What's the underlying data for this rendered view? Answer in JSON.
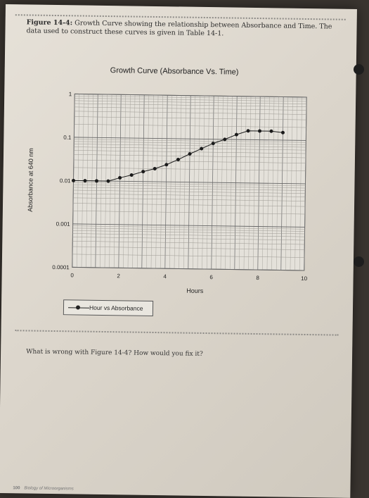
{
  "caption": {
    "label": "Figure 14-4:",
    "text": "Growth Curve showing the relationship between Absorbance and Time. The data used to construct these curves is given in Table 14-1."
  },
  "question": "What is wrong with Figure 14-4? How would you fix it?",
  "footer": {
    "page_number": "100",
    "book_title": "Biology of Microorganisms"
  },
  "chart_data": {
    "type": "line",
    "title": "Growth Curve (Absorbance Vs. Time)",
    "xlabel": "Hours",
    "ylabel": "Absorbance at 640 nm",
    "xlim": [
      0,
      10
    ],
    "ylim": [
      0.0001,
      1
    ],
    "y_scale": "log",
    "x_ticks": [
      "0",
      "2",
      "4",
      "6",
      "8",
      "10"
    ],
    "y_ticks": [
      "0.0001",
      "0.001",
      "0.01",
      "0.1",
      "1"
    ],
    "legend_position": "bottom",
    "grid": true,
    "series": [
      {
        "name": "Hour vs Absorbance",
        "x": [
          0,
          0.5,
          1,
          1.5,
          2,
          2.5,
          3,
          3.5,
          4,
          4.5,
          5,
          5.5,
          6,
          6.5,
          7,
          7.5,
          8,
          8.5,
          9
        ],
        "y": [
          0.01,
          0.01,
          0.01,
          0.01,
          0.012,
          0.014,
          0.017,
          0.02,
          0.025,
          0.033,
          0.045,
          0.06,
          0.08,
          0.1,
          0.13,
          0.16,
          0.16,
          0.16,
          0.15
        ]
      }
    ]
  }
}
